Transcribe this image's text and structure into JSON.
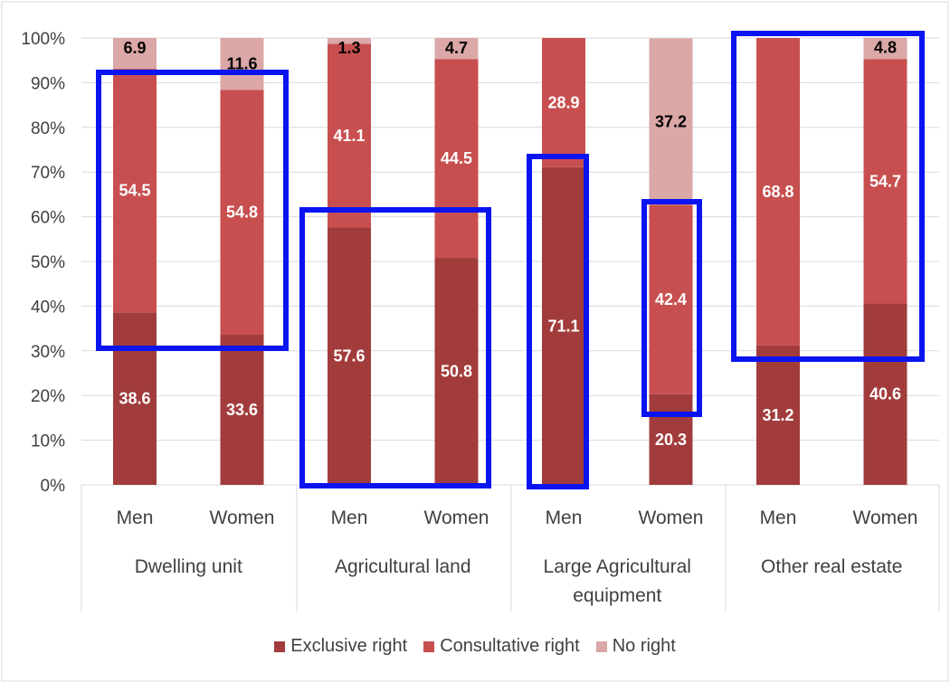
{
  "chart_data": {
    "type": "bar",
    "stacked": true,
    "title": "",
    "xlabel": "",
    "ylabel": "",
    "ylim": [
      0,
      100
    ],
    "y_ticks": [
      "0%",
      "10%",
      "20%",
      "30%",
      "40%",
      "50%",
      "60%",
      "70%",
      "80%",
      "90%",
      "100%"
    ],
    "groups": [
      {
        "label": "Dwelling unit",
        "label_lines": [
          "Dwelling unit"
        ]
      },
      {
        "label": "Agricultural land",
        "label_lines": [
          "Agricultural land"
        ]
      },
      {
        "label": "Large Agricultural equipment",
        "label_lines": [
          "Large Agricultural",
          "equipment"
        ]
      },
      {
        "label": "Other real estate",
        "label_lines": [
          "Other real estate"
        ]
      }
    ],
    "categories": [
      "Men",
      "Women",
      "Men",
      "Women",
      "Men",
      "Women",
      "Men",
      "Women"
    ],
    "series": [
      {
        "name": "Exclusive right",
        "color": "#a23c3c",
        "values": [
          38.6,
          33.6,
          57.6,
          50.8,
          71.1,
          20.3,
          31.2,
          40.6
        ],
        "labels": [
          "38.6",
          "33.6",
          "57.6",
          "50.8",
          "71.1",
          "20.3",
          "31.2",
          "40.6"
        ]
      },
      {
        "name": "Consultative right",
        "color": "#c84f4f",
        "values": [
          54.5,
          54.8,
          41.1,
          44.5,
          28.9,
          42.4,
          68.8,
          54.7
        ],
        "labels": [
          "54.5",
          "54.8",
          "41.1",
          "44.5",
          "28.9",
          "42.4",
          "68.8",
          "54.7"
        ]
      },
      {
        "name": "No right",
        "color": "#dba7a7",
        "values": [
          6.9,
          11.6,
          1.3,
          4.7,
          0,
          37.2,
          0,
          4.8
        ],
        "labels": [
          "6.9",
          "11.6",
          "1.3",
          "4.7",
          "",
          "37.2",
          "",
          "4.8"
        ]
      }
    ],
    "grid": true,
    "legend_position": "bottom",
    "highlight_color": "#0a14f0"
  }
}
